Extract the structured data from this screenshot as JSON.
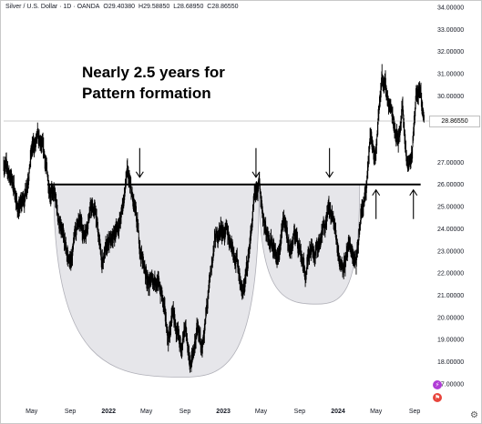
{
  "legend": {
    "symbol": "Silver / U.S. Dollar · 1D · OANDA",
    "open": "O29.40380",
    "high": "H29.58850",
    "low": "L28.68950",
    "close": "C28.86550"
  },
  "annotation": {
    "line1": "Nearly 2.5 years for",
    "line2": "Pattern formation"
  },
  "price_tag": "28.86550",
  "icons": [
    "lightning-icon",
    "flag-icon",
    "settings-icon"
  ],
  "colors": {
    "candles": "#000000",
    "neckline": "#000000",
    "pattern_fill": "#e6e6ea",
    "pattern_stroke": "#b0b0b8",
    "lightning_icon": "#b03cd6",
    "flag_icon": "#e8453c"
  },
  "chart_data": {
    "type": "line",
    "title": "",
    "xlabel": "",
    "ylabel": "",
    "ylim": [
      16.5,
      34.0
    ],
    "y_ticks": [
      "34.00000",
      "33.00000",
      "32.00000",
      "31.00000",
      "30.00000",
      "29.00000",
      "27.00000",
      "26.00000",
      "25.00000",
      "24.00000",
      "23.00000",
      "22.00000",
      "21.00000",
      "20.00000",
      "19.00000",
      "18.00000",
      "17.00000"
    ],
    "x_ticks": [
      "May",
      "Sep",
      "2022",
      "May",
      "Sep",
      "2023",
      "May",
      "Sep",
      "2024",
      "May",
      "Sep"
    ],
    "x_tick_dates": [
      "2021-05-01",
      "2021-09-01",
      "2022-01-01",
      "2022-05-01",
      "2022-09-01",
      "2023-01-01",
      "2023-05-01",
      "2023-09-01",
      "2024-01-01",
      "2024-05-01",
      "2024-09-01"
    ],
    "xlim": [
      "2021-02-01",
      "2024-10-20"
    ],
    "series": [
      {
        "x": [
          "2021-02-01",
          "2021-03-01",
          "2021-03-20",
          "2021-04-10",
          "2021-05-01",
          "2021-05-20",
          "2021-06-10",
          "2021-06-25",
          "2021-07-15",
          "2021-08-01",
          "2021-08-12",
          "2021-09-01",
          "2021-09-25",
          "2021-10-15",
          "2021-11-05",
          "2021-11-20",
          "2021-12-10",
          "2022-01-01",
          "2022-01-20",
          "2022-02-10",
          "2022-03-01",
          "2022-03-08",
          "2022-03-25",
          "2022-04-15",
          "2022-05-10",
          "2022-06-01",
          "2022-06-20",
          "2022-07-10",
          "2022-07-25",
          "2022-08-15",
          "2022-09-01",
          "2022-09-20",
          "2022-10-10",
          "2022-10-25",
          "2022-11-15",
          "2022-12-05",
          "2022-12-25",
          "2023-01-10",
          "2023-01-25",
          "2023-02-15",
          "2023-03-05",
          "2023-03-20",
          "2023-04-10",
          "2023-04-25",
          "2023-05-15",
          "2023-06-05",
          "2023-06-23",
          "2023-07-15",
          "2023-08-01",
          "2023-08-20",
          "2023-09-05",
          "2023-09-20",
          "2023-10-05",
          "2023-10-20",
          "2023-11-10",
          "2023-11-30",
          "2023-12-20",
          "2024-01-10",
          "2024-01-25",
          "2024-02-10",
          "2024-02-28",
          "2024-03-15",
          "2024-04-01",
          "2024-04-12",
          "2024-05-01",
          "2024-05-20",
          "2024-06-05",
          "2024-06-25",
          "2024-07-10",
          "2024-07-25",
          "2024-08-07",
          "2024-08-25",
          "2024-09-05",
          "2024-09-20",
          "2024-10-01"
        ],
        "values": [
          27.0,
          26.2,
          24.8,
          25.5,
          27.5,
          28.0,
          27.3,
          26.0,
          25.3,
          24.0,
          23.3,
          22.4,
          24.4,
          23.8,
          24.9,
          24.8,
          22.5,
          23.2,
          23.8,
          24.5,
          26.5,
          26.0,
          24.8,
          22.8,
          21.5,
          21.8,
          21.0,
          19.0,
          20.2,
          18.5,
          19.2,
          17.8,
          19.5,
          18.5,
          21.0,
          23.5,
          24.0,
          23.8,
          23.5,
          22.5,
          21.0,
          22.5,
          25.2,
          26.0,
          24.0,
          23.5,
          22.5,
          24.5,
          23.0,
          23.8,
          23.0,
          21.8,
          23.4,
          22.9,
          23.6,
          25.0,
          24.2,
          22.4,
          22.6,
          23.1,
          22.3,
          24.7,
          25.7,
          28.0,
          27.5,
          31.0,
          30.0,
          29.0,
          28.0,
          29.5,
          27.0,
          27.5,
          30.0,
          30.0,
          28.9
        ]
      }
    ],
    "neckline": 26.0,
    "current_price": 28.8655,
    "arrows": [
      {
        "direction": "down",
        "date": "2022-04-10"
      },
      {
        "direction": "down",
        "date": "2023-04-15"
      },
      {
        "direction": "down",
        "date": "2023-12-05"
      },
      {
        "direction": "up",
        "date": "2024-05-01"
      },
      {
        "direction": "up",
        "date": "2024-08-28"
      }
    ],
    "grid": false,
    "legend_position": "top-left"
  }
}
